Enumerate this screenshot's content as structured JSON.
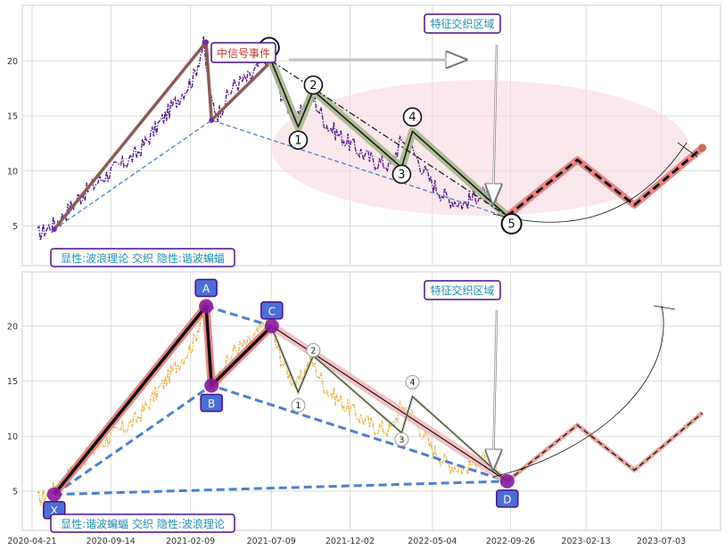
{
  "chart_data": [
    {
      "type": "line",
      "panel": "top",
      "x_dates": [
        "2020-04-21",
        "2020-09-14",
        "2021-02-09",
        "2021-07-09",
        "2021-12-02",
        "2022-05-04",
        "2022-09-26",
        "2023-02-13",
        "2023-07-03"
      ],
      "ylim": [
        1.5,
        25
      ],
      "yticks": [
        5,
        10,
        15,
        20
      ],
      "grid": true,
      "price_color": "#4b0f8c",
      "price_anchors": [
        [
          "2020-05-01",
          4.2
        ],
        [
          "2020-06-10",
          5.5
        ],
        [
          "2020-07-15",
          7.5
        ],
        [
          "2020-09-01",
          9.5
        ],
        [
          "2020-11-01",
          11.5
        ],
        [
          "2021-01-01",
          15.5
        ],
        [
          "2021-02-15",
          18.5
        ],
        [
          "2021-03-05",
          21.5
        ],
        [
          "2021-03-18",
          16.5
        ],
        [
          "2021-04-01",
          15.2
        ],
        [
          "2021-05-01",
          17.8
        ],
        [
          "2021-06-01",
          18.5
        ],
        [
          "2021-07-01",
          20.5
        ],
        [
          "2021-08-01",
          16.5
        ],
        [
          "2021-08-25",
          14.5
        ],
        [
          "2021-09-20",
          17.0
        ],
        [
          "2021-10-20",
          14.2
        ],
        [
          "2021-12-01",
          12.5
        ],
        [
          "2022-01-10",
          11.0
        ],
        [
          "2022-02-15",
          10.5
        ],
        [
          "2022-03-10",
          13.0
        ],
        [
          "2022-04-01",
          11.5
        ],
        [
          "2022-05-01",
          9.0
        ],
        [
          "2022-06-01",
          7.5
        ],
        [
          "2022-07-01",
          7.0
        ],
        [
          "2022-08-01",
          8.0
        ],
        [
          "2022-09-01",
          7.0
        ]
      ],
      "series": [
        {
          "name": "",
          "style": "thick-brown",
          "points": [
            [
              "2020-06-01",
              4.7
            ],
            [
              "2021-03-10",
              21.7
            ],
            [
              "2021-03-20",
              14.6
            ],
            [
              "2021-07-10",
              20.0
            ]
          ]
        },
        {
          "name": "",
          "style": "dashed-blue",
          "points": [
            [
              "2020-06-01",
              4.7
            ],
            [
              "2021-03-20",
              14.6
            ],
            [
              "2022-09-20",
              5.8
            ]
          ]
        },
        {
          "name": "",
          "style": "wave-olive",
          "points": [
            [
              "2021-07-09",
              20.0
            ],
            [
              "2021-08-28",
              14.0
            ],
            [
              "2021-09-25",
              17.3
            ],
            [
              "2022-03-08",
              10.3
            ],
            [
              "2022-03-28",
              13.6
            ],
            [
              "2022-09-20",
              5.9
            ]
          ]
        },
        {
          "name": "",
          "style": "dashdot-black",
          "points": [
            [
              "2021-07-09",
              20.0
            ],
            [
              "2022-09-20",
              5.9
            ]
          ]
        },
        {
          "name": "",
          "style": "projection-red",
          "points": [
            [
              "2022-09-20",
              5.9
            ],
            [
              "2023-01-28",
              11.0
            ],
            [
              "2023-05-14",
              6.9
            ],
            [
              "2023-09-17",
              12.1
            ]
          ]
        }
      ],
      "wave_labels": [
        "0",
        "1",
        "2",
        "3",
        "4",
        "5"
      ],
      "annotations": {
        "signal": "中信号事件",
        "zone": "特征交织区域",
        "corner": "显性:波浪理论 交织 隐性:谐波蝙蝠"
      }
    },
    {
      "type": "line",
      "panel": "bottom",
      "x_dates": [
        "2020-04-21",
        "2020-09-14",
        "2021-02-09",
        "2021-07-09",
        "2021-12-02",
        "2022-05-04",
        "2022-09-26",
        "2023-02-13",
        "2023-07-03"
      ],
      "ylim": [
        1.5,
        25
      ],
      "yticks": [
        5,
        10,
        15,
        20
      ],
      "grid": true,
      "price_color": "#e8b64a",
      "pattern_points": [
        {
          "label": "X",
          "date": "2020-06-01",
          "value": 4.7
        },
        {
          "label": "A",
          "date": "2021-03-10",
          "value": 21.8
        },
        {
          "label": "B",
          "date": "2021-03-20",
          "value": 14.6
        },
        {
          "label": "C",
          "date": "2021-07-10",
          "value": 20.0
        },
        {
          "label": "D",
          "date": "2022-09-20",
          "value": 5.9
        }
      ],
      "series": [
        {
          "name": "",
          "style": "projection-salmon",
          "points": [
            [
              "2022-09-20",
              5.9
            ],
            [
              "2023-01-28",
              11.0
            ],
            [
              "2023-05-14",
              6.9
            ],
            [
              "2023-09-17",
              12.1
            ]
          ]
        }
      ],
      "wave_labels": [
        "1",
        "2",
        "3",
        "4"
      ],
      "annotations": {
        "zone": "特征交织区域",
        "corner": "显性:谐波蝙蝠 交织 隐性:波浪理论"
      }
    }
  ],
  "colors": {
    "grid": "#d2d2d2",
    "frame": "#cccccc",
    "box_border": "#4b0f8c",
    "box_text": "#1f8fb4",
    "signal_text": "#c0392b",
    "ellipse": "#f7d6dc",
    "brown": "#8b5a55",
    "blue_dash": "#4a7fd6",
    "olive": "#a7b98a",
    "proj_red": "#e87272",
    "point_fill": "#8a1a9e",
    "label_box": "#4a6fd6"
  }
}
